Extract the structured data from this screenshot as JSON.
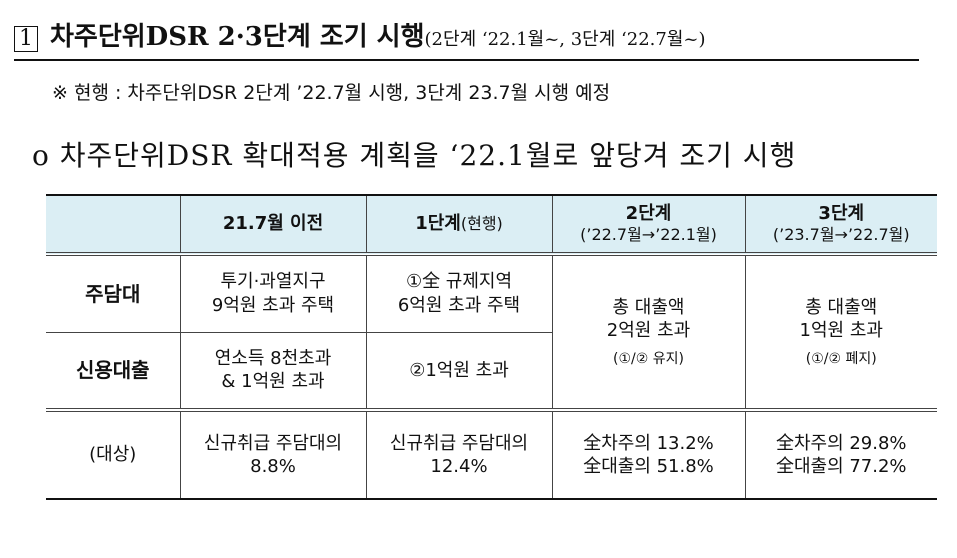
{
  "heading": {
    "number": "1",
    "title": "차주단위DSR 2·3단계 조기 시행",
    "subtitle": "(2단계 ‘22.1월~, 3단계 ‘22.7월~)"
  },
  "note": "※ 현행 : 차주단위DSR 2단계 ’22.7월 시행, 3단계 23.7월 시행 예정",
  "bullet": {
    "marker": "o",
    "text": "차주단위DSR 확대적용 계획을 ‘22.1월로 앞당겨 조기 시행"
  },
  "table": {
    "headers": {
      "col1": "21.7월 이전",
      "col2_bold": "1단계",
      "col2_normal": "(현행)",
      "col3_title": "2단계",
      "col3_sub": "(’22.7월→’22.1월)",
      "col4_title": "3단계",
      "col4_sub": "(’23.7월→’22.7월)"
    },
    "rows": {
      "mortgage": {
        "label": "주담대",
        "c1_line1": "투기·과열지구",
        "c1_line2": "9억원 초과 주택",
        "c2_line1": "①全 규제지역",
        "c2_line2": "6억원 초과 주택"
      },
      "credit": {
        "label": "신용대출",
        "c1_line1": "연소득 8천초과",
        "c1_line2": "& 1억원 초과",
        "c2": "②1억원 초과"
      },
      "stage2_merged": {
        "line1": "총 대출액",
        "line2": "2억원 초과",
        "note": "(①/② 유지)"
      },
      "stage3_merged": {
        "line1": "총 대출액",
        "line2": "1억원 초과",
        "note": "(①/② 폐지)"
      },
      "target": {
        "label": "(대상)",
        "c1_line1": "신규취급 주담대의",
        "c1_line2": "8.8%",
        "c2_line1": "신규취급 주담대의",
        "c2_line2": "12.4%",
        "c3_line1": "全차주의 13.2%",
        "c3_line2": "全대출의 51.8%",
        "c4_line1": "全차주의 29.8%",
        "c4_line2": "全대출의 77.2%"
      }
    }
  }
}
